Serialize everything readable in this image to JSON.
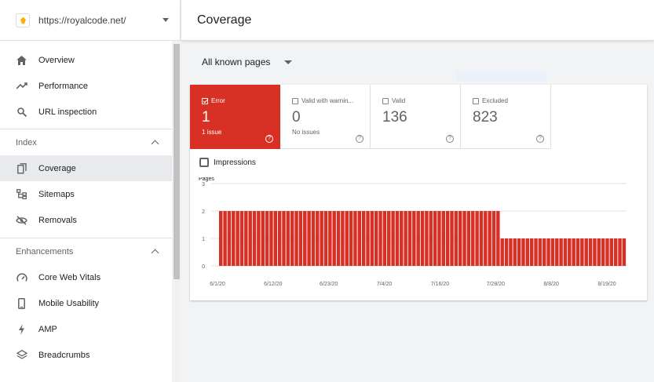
{
  "property": {
    "url": "https://royalcode.net/"
  },
  "nav": {
    "top": [
      {
        "label": "Overview",
        "icon": "home-icon"
      },
      {
        "label": "Performance",
        "icon": "trending-up-icon"
      },
      {
        "label": "URL inspection",
        "icon": "search-icon"
      }
    ],
    "index": {
      "title": "Index",
      "items": [
        {
          "label": "Coverage",
          "icon": "coverage-icon",
          "active": true
        },
        {
          "label": "Sitemaps",
          "icon": "sitemap-icon"
        },
        {
          "label": "Removals",
          "icon": "eye-off-icon"
        }
      ]
    },
    "enhancements": {
      "title": "Enhancements",
      "items": [
        {
          "label": "Core Web Vitals",
          "icon": "gauge-icon"
        },
        {
          "label": "Mobile Usability",
          "icon": "phone-icon"
        },
        {
          "label": "AMP",
          "icon": "bolt-icon"
        },
        {
          "label": "Breadcrumbs",
          "icon": "layers-icon"
        }
      ]
    }
  },
  "header": {
    "title": "Coverage"
  },
  "filter": {
    "label": "All known pages"
  },
  "tiles": [
    {
      "label": "Error",
      "value": "1",
      "sub": "1 issue",
      "checked": true
    },
    {
      "label": "Valid with warnin...",
      "value": "0",
      "sub": "No issues",
      "checked": false
    },
    {
      "label": "Valid",
      "value": "136",
      "sub": "",
      "checked": false
    },
    {
      "label": "Excluded",
      "value": "823",
      "sub": "",
      "checked": false
    }
  ],
  "impressions": {
    "label": "Impressions"
  },
  "colors": {
    "error": "#d93025",
    "grid": "#e0e0e0"
  },
  "chart_data": {
    "type": "bar",
    "ylabel": "Pages",
    "ylim": [
      0,
      3
    ],
    "yticks": [
      "0",
      "1",
      "2",
      "3"
    ],
    "xticks": [
      "6/1/20",
      "6/12/20",
      "6/23/20",
      "7/4/20",
      "7/16/20",
      "7/28/20",
      "8/8/20",
      "8/19/20"
    ],
    "series": [
      {
        "values": [
          2,
          2,
          2,
          2,
          2,
          2,
          2,
          2,
          2,
          2,
          2,
          2,
          2,
          2,
          2,
          2,
          2,
          2,
          2,
          2,
          2,
          2,
          2,
          2,
          2,
          2,
          2,
          2,
          2,
          2,
          2,
          2,
          2,
          2,
          2,
          2,
          2,
          2,
          2,
          2,
          2,
          2,
          2,
          2,
          2,
          2,
          2,
          2,
          2,
          2,
          2,
          2,
          2,
          2,
          2,
          2,
          2,
          2,
          2,
          2,
          2,
          2,
          2,
          2,
          2,
          2,
          2,
          1,
          1,
          1,
          1,
          1,
          1,
          1,
          1,
          1,
          1,
          1,
          1,
          1,
          1,
          1,
          1,
          1,
          1,
          1,
          1,
          1,
          1,
          1,
          1,
          1,
          1,
          1,
          1,
          1,
          1
        ]
      }
    ]
  }
}
